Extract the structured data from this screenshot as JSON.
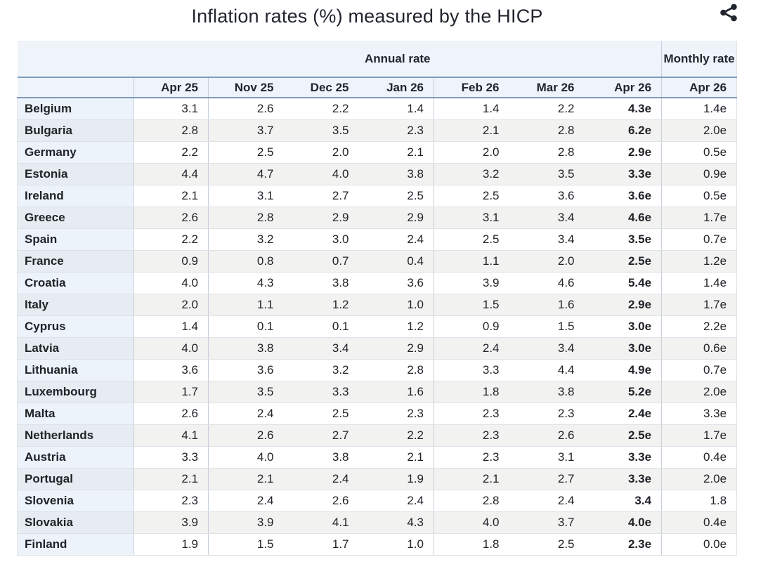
{
  "header": {
    "title": "Inflation rates (%) measured by the HICP"
  },
  "icons": {
    "share": "share-icon"
  },
  "colors": {
    "header_bg": "#eff3fa",
    "steel_border": "#7e99c1",
    "row_stripe": "#f2f2f0",
    "label_col_odd": "#edf3fa",
    "label_col_even": "#e7ecf2",
    "text": "#202328",
    "icon": "#21252c"
  },
  "chart_data": {
    "type": "table",
    "title": "Inflation rates (%) measured by the HICP",
    "column_groups": [
      {
        "label": "Annual rate",
        "span": 7
      },
      {
        "label": "Monthly rate",
        "span": 1
      }
    ],
    "columns": [
      "Apr 25",
      "Nov 25",
      "Dec 25",
      "Jan 26",
      "Feb 26",
      "Mar 26",
      "Apr 26"
    ],
    "monthly_column": "Apr 26",
    "rows": [
      {
        "country": "Belgium",
        "annual": [
          "3.1",
          "2.6",
          "2.2",
          "1.4",
          "1.4",
          "2.2",
          "4.3e"
        ],
        "monthly": "1.4e"
      },
      {
        "country": "Bulgaria",
        "annual": [
          "2.8",
          "3.7",
          "3.5",
          "2.3",
          "2.1",
          "2.8",
          "6.2e"
        ],
        "monthly": "2.0e"
      },
      {
        "country": "Germany",
        "annual": [
          "2.2",
          "2.5",
          "2.0",
          "2.1",
          "2.0",
          "2.8",
          "2.9e"
        ],
        "monthly": "0.5e"
      },
      {
        "country": "Estonia",
        "annual": [
          "4.4",
          "4.7",
          "4.0",
          "3.8",
          "3.2",
          "3.5",
          "3.3e"
        ],
        "monthly": "0.9e"
      },
      {
        "country": "Ireland",
        "annual": [
          "2.1",
          "3.1",
          "2.7",
          "2.5",
          "2.5",
          "3.6",
          "3.6e"
        ],
        "monthly": "0.5e"
      },
      {
        "country": "Greece",
        "annual": [
          "2.6",
          "2.8",
          "2.9",
          "2.9",
          "3.1",
          "3.4",
          "4.6e"
        ],
        "monthly": "1.7e"
      },
      {
        "country": "Spain",
        "annual": [
          "2.2",
          "3.2",
          "3.0",
          "2.4",
          "2.5",
          "3.4",
          "3.5e"
        ],
        "monthly": "0.7e"
      },
      {
        "country": "France",
        "annual": [
          "0.9",
          "0.8",
          "0.7",
          "0.4",
          "1.1",
          "2.0",
          "2.5e"
        ],
        "monthly": "1.2e"
      },
      {
        "country": "Croatia",
        "annual": [
          "4.0",
          "4.3",
          "3.8",
          "3.6",
          "3.9",
          "4.6",
          "5.4e"
        ],
        "monthly": "1.4e"
      },
      {
        "country": "Italy",
        "annual": [
          "2.0",
          "1.1",
          "1.2",
          "1.0",
          "1.5",
          "1.6",
          "2.9e"
        ],
        "monthly": "1.7e"
      },
      {
        "country": "Cyprus",
        "annual": [
          "1.4",
          "0.1",
          "0.1",
          "1.2",
          "0.9",
          "1.5",
          "3.0e"
        ],
        "monthly": "2.2e"
      },
      {
        "country": "Latvia",
        "annual": [
          "4.0",
          "3.8",
          "3.4",
          "2.9",
          "2.4",
          "3.4",
          "3.0e"
        ],
        "monthly": "0.6e"
      },
      {
        "country": "Lithuania",
        "annual": [
          "3.6",
          "3.6",
          "3.2",
          "2.8",
          "3.3",
          "4.4",
          "4.9e"
        ],
        "monthly": "0.7e"
      },
      {
        "country": "Luxembourg",
        "annual": [
          "1.7",
          "3.5",
          "3.3",
          "1.6",
          "1.8",
          "3.8",
          "5.2e"
        ],
        "monthly": "2.0e"
      },
      {
        "country": "Malta",
        "annual": [
          "2.6",
          "2.4",
          "2.5",
          "2.3",
          "2.3",
          "2.3",
          "2.4e"
        ],
        "monthly": "3.3e"
      },
      {
        "country": "Netherlands",
        "annual": [
          "4.1",
          "2.6",
          "2.7",
          "2.2",
          "2.3",
          "2.6",
          "2.5e"
        ],
        "monthly": "1.7e"
      },
      {
        "country": "Austria",
        "annual": [
          "3.3",
          "4.0",
          "3.8",
          "2.1",
          "2.3",
          "3.1",
          "3.3e"
        ],
        "monthly": "0.4e"
      },
      {
        "country": "Portugal",
        "annual": [
          "2.1",
          "2.1",
          "2.4",
          "1.9",
          "2.1",
          "2.7",
          "3.3e"
        ],
        "monthly": "2.0e"
      },
      {
        "country": "Slovenia",
        "annual": [
          "2.3",
          "2.4",
          "2.6",
          "2.4",
          "2.8",
          "2.4",
          "3.4"
        ],
        "monthly": "1.8"
      },
      {
        "country": "Slovakia",
        "annual": [
          "3.9",
          "3.9",
          "4.1",
          "4.3",
          "4.0",
          "3.7",
          "4.0e"
        ],
        "monthly": "0.4e"
      },
      {
        "country": "Finland",
        "annual": [
          "1.9",
          "1.5",
          "1.7",
          "1.0",
          "1.8",
          "2.5",
          "2.3e"
        ],
        "monthly": "0.0e"
      }
    ]
  }
}
